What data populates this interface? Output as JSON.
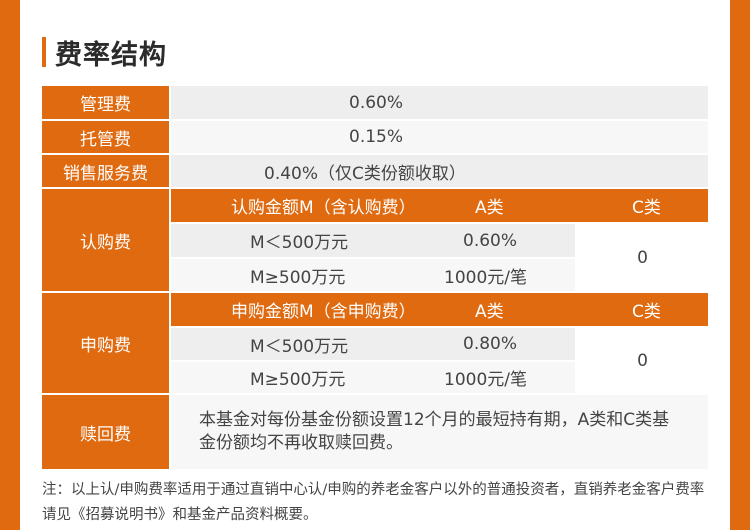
{
  "title": "费率结构",
  "rows": {
    "mgmt": {
      "label": "管理费",
      "value": "0.60%"
    },
    "custody": {
      "label": "托管费",
      "value": "0.15%"
    },
    "service": {
      "label": "销售服务费",
      "value": "0.40%（仅C类份额收取）"
    }
  },
  "subscription": {
    "label": "认购费",
    "header": {
      "amount": "认购金额M（含认购费）",
      "classA": "A类",
      "classC": "C类"
    },
    "row1": {
      "amount": "M＜500万元",
      "a": "0.60%"
    },
    "row2": {
      "amount": "M≥500万元",
      "a": "1000元/笔"
    },
    "c_value": "0"
  },
  "purchase": {
    "label": "申购费",
    "header": {
      "amount": "申购金额M（含申购费）",
      "classA": "A类",
      "classC": "C类"
    },
    "row1": {
      "amount": "M＜500万元",
      "a": "0.80%"
    },
    "row2": {
      "amount": "M≥500万元",
      "a": "1000元/笔"
    },
    "c_value": "0"
  },
  "redemption": {
    "label": "赎回费",
    "text": "本基金对每份基金份额设置12个月的最短持有期，A类和C类基金份额均不再收取赎回费。"
  },
  "note": "注：以上认/申购费率适用于通过直销中心认/申购的养老金客户以外的普通投资者，直销养老金客户费率请见《招募说明书》和基金产品资料概要。",
  "colors": {
    "accent": "#e06a0f",
    "cell_light": "#f7f7f7",
    "cell_gray": "#eeeeee"
  }
}
